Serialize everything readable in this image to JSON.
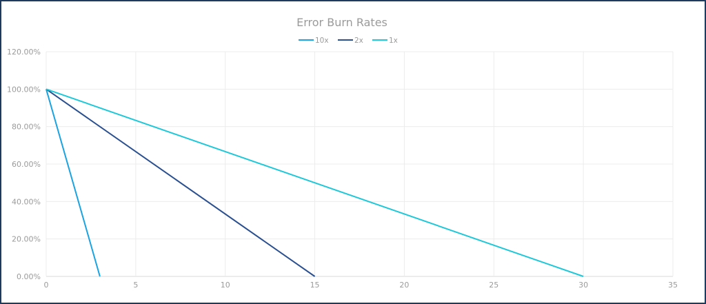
{
  "chart_data": {
    "type": "line",
    "title": "Error Burn Rates",
    "xlabel": "",
    "ylabel": "",
    "xlim": [
      0,
      35
    ],
    "ylim": [
      0,
      120
    ],
    "x_ticks": [
      "0",
      "5",
      "10",
      "15",
      "20",
      "25",
      "30",
      "35"
    ],
    "y_ticks": [
      "0.00%",
      "20.00%",
      "40.00%",
      "60.00%",
      "80.00%",
      "100.00%",
      "120.00%"
    ],
    "grid": true,
    "legend_position": "top-center",
    "series": [
      {
        "name": "10x",
        "color": "#1aa3e0",
        "points": [
          [
            0,
            100
          ],
          [
            3,
            0
          ]
        ]
      },
      {
        "name": "2x",
        "color": "#2a4f8f",
        "points": [
          [
            0,
            100
          ],
          [
            15,
            0
          ]
        ]
      },
      {
        "name": "1x",
        "color": "#1ec8d8",
        "points": [
          [
            0,
            100
          ],
          [
            30,
            0
          ]
        ]
      }
    ]
  }
}
